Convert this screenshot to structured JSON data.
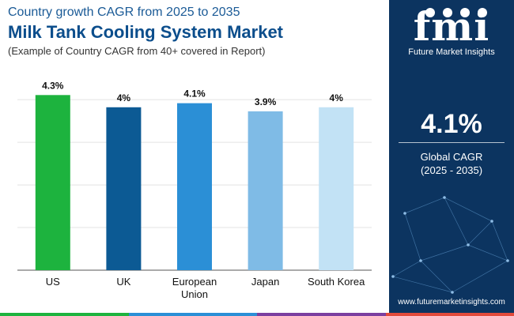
{
  "header": {
    "eyebrow": "Country growth CAGR from 2025 to 2035",
    "title": "Milk Tank Cooling System Market",
    "subtitle": "(Example of Country CAGR from 40+ covered in Report)"
  },
  "sidebar": {
    "logo_text": "fmi",
    "logo_name": "Future Market Insights",
    "global_value": "4.1%",
    "global_label_line1": "Global CAGR",
    "global_label_line2": "(2025 - 2035)",
    "website": "www.futuremarketinsights.com",
    "background": "#0c3460"
  },
  "chart_data": {
    "type": "bar",
    "categories": [
      "US",
      "UK",
      "European Union",
      "Japan",
      "South Korea"
    ],
    "values": [
      4.3,
      4.0,
      4.1,
      3.9,
      4.0
    ],
    "data_labels": [
      "4.3%",
      "4%",
      "4.1%",
      "3.9%",
      "4%"
    ],
    "colors": [
      "#1db33e",
      "#0c5a94",
      "#2b8fd6",
      "#7fbbe6",
      "#c2e2f5"
    ],
    "ylim": [
      0,
      4.5
    ],
    "grid": true
  },
  "footer_colors": [
    "#1db33e",
    "#2b8fd6",
    "#7b3fa0",
    "#e24a3b"
  ]
}
